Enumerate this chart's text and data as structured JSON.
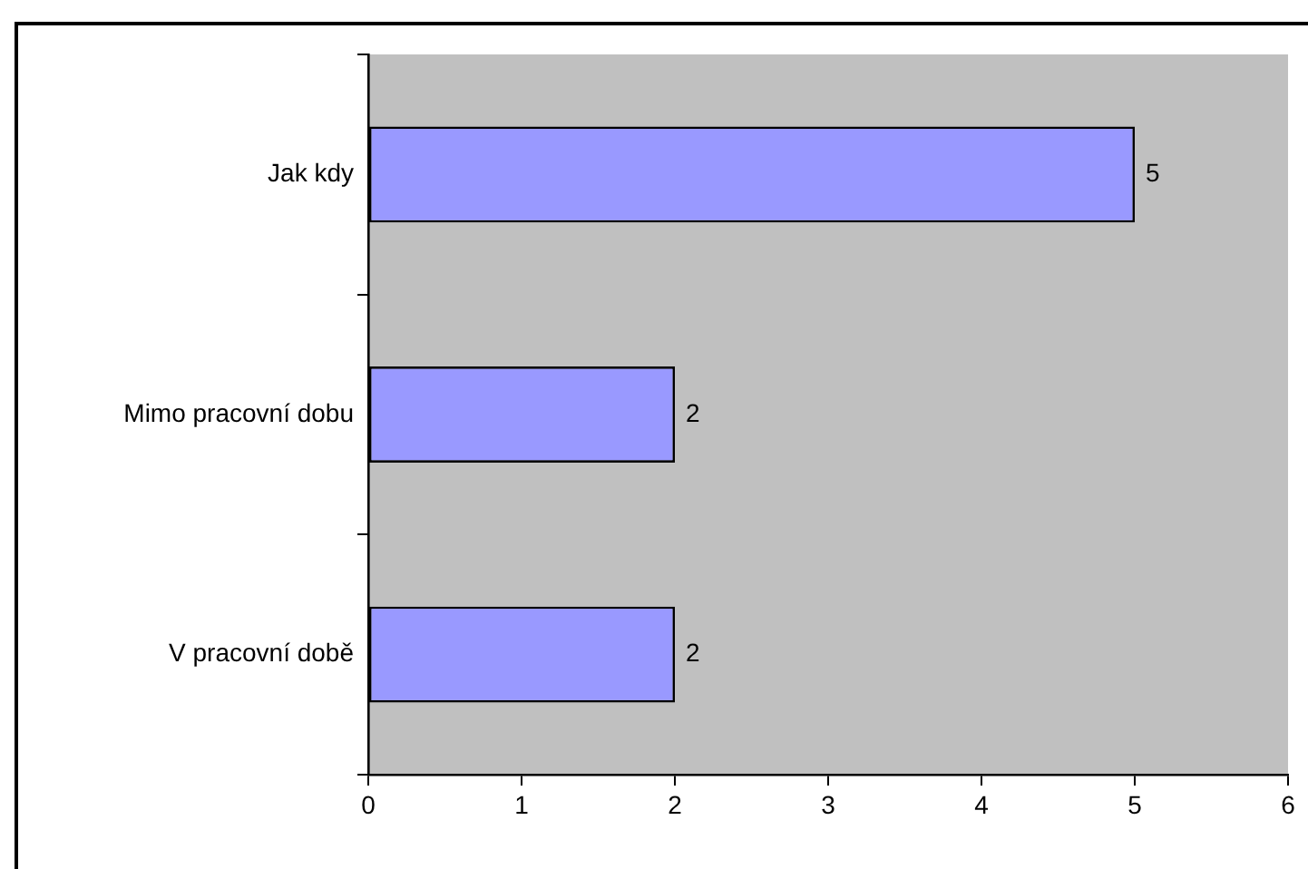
{
  "chart_data": {
    "type": "bar",
    "orientation": "horizontal",
    "categories": [
      "Jak kdy",
      "Mimo pracovní dobu",
      "V pracovní době"
    ],
    "values": [
      5,
      2,
      2
    ],
    "color": "#9999ff",
    "xlim": [
      0,
      6
    ],
    "xticks": [
      0,
      1,
      2,
      3,
      4,
      5,
      6
    ],
    "grid": false,
    "legend": false,
    "data_labels": true
  }
}
